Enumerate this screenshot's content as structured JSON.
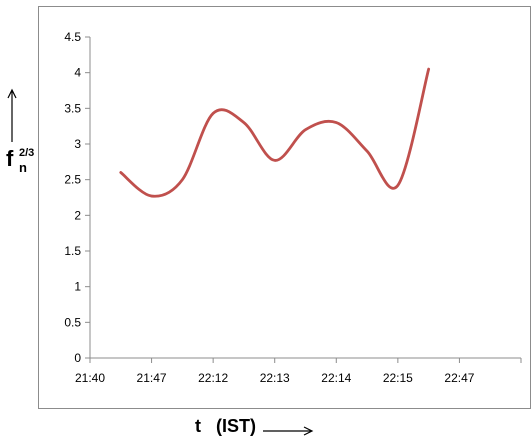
{
  "chart_data": {
    "type": "line",
    "title": "",
    "xlabel": "t   (IST)",
    "ylabel_main": "f",
    "ylabel_sub": "n",
    "ylabel_sup": "2/3",
    "categories": [
      "21:40",
      "21:47",
      "22:12",
      "22:13",
      "22:14",
      "22:15",
      "22:47"
    ],
    "yticks": [
      "0",
      "0.5",
      "1",
      "1.5",
      "2",
      "2.5",
      "3",
      "3.5",
      "4",
      "4.5"
    ],
    "ylim": [
      0,
      4.5
    ],
    "grid": false,
    "legend": "none",
    "series": [
      {
        "color": "#c0504d",
        "points": [
          {
            "x": 0.5,
            "y": 2.6
          },
          {
            "x": 1.0,
            "y": 2.27
          },
          {
            "x": 1.5,
            "y": 2.5
          },
          {
            "x": 2.0,
            "y": 3.43
          },
          {
            "x": 2.5,
            "y": 3.3
          },
          {
            "x": 3.0,
            "y": 2.77
          },
          {
            "x": 3.5,
            "y": 3.2
          },
          {
            "x": 4.0,
            "y": 3.3
          },
          {
            "x": 4.5,
            "y": 2.9
          },
          {
            "x": 5.0,
            "y": 2.42
          },
          {
            "x": 5.5,
            "y": 4.05
          }
        ]
      }
    ]
  }
}
